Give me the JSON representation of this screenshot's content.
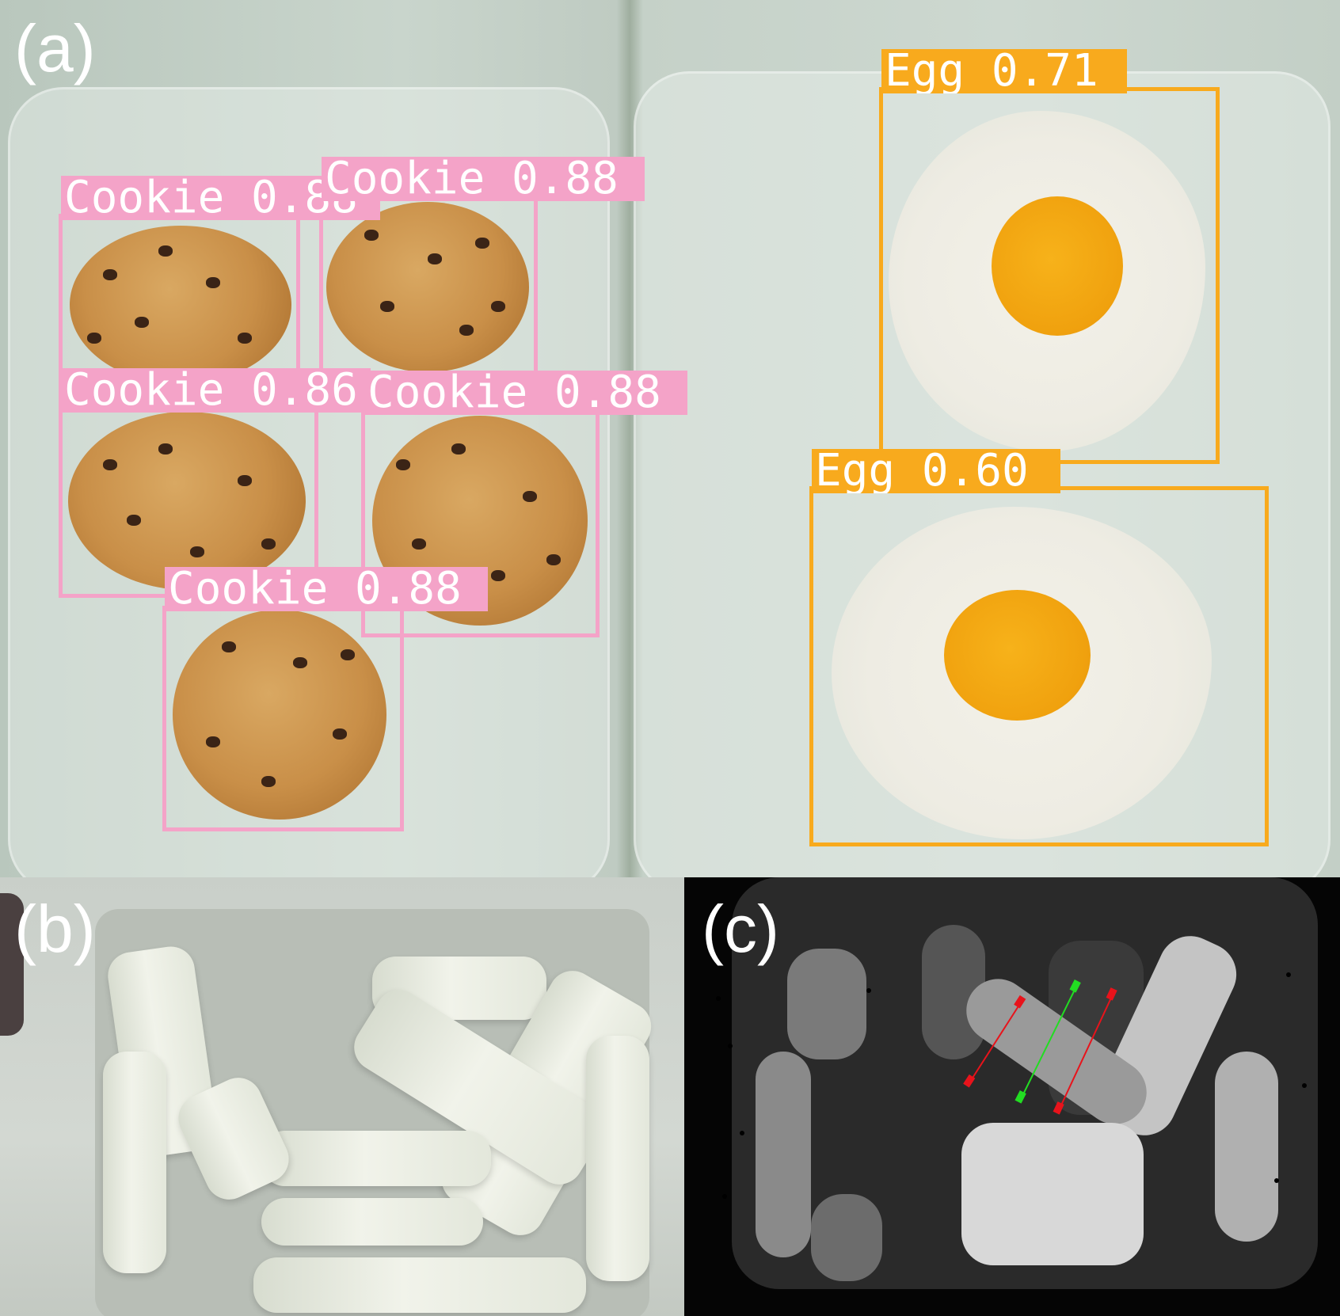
{
  "panels": {
    "a": {
      "letter": "(a)"
    },
    "b": {
      "letter": "(b)"
    },
    "c": {
      "letter": "(c)"
    }
  },
  "detections": {
    "cookie_1": "Cookie 0.88",
    "cookie_2": "Cookie 0.88",
    "cookie_3": "Cookie 0.86",
    "cookie_4": "Cookie 0.88",
    "cookie_5": "Cookie 0.88",
    "egg_1": "Egg 0.71",
    "egg_2": "Egg 0.60"
  },
  "colors": {
    "cookie_box": "#f4a3c8",
    "egg_box": "#f8aa1d",
    "grasp_red": "#e8131b",
    "grasp_green": "#22dd22"
  }
}
